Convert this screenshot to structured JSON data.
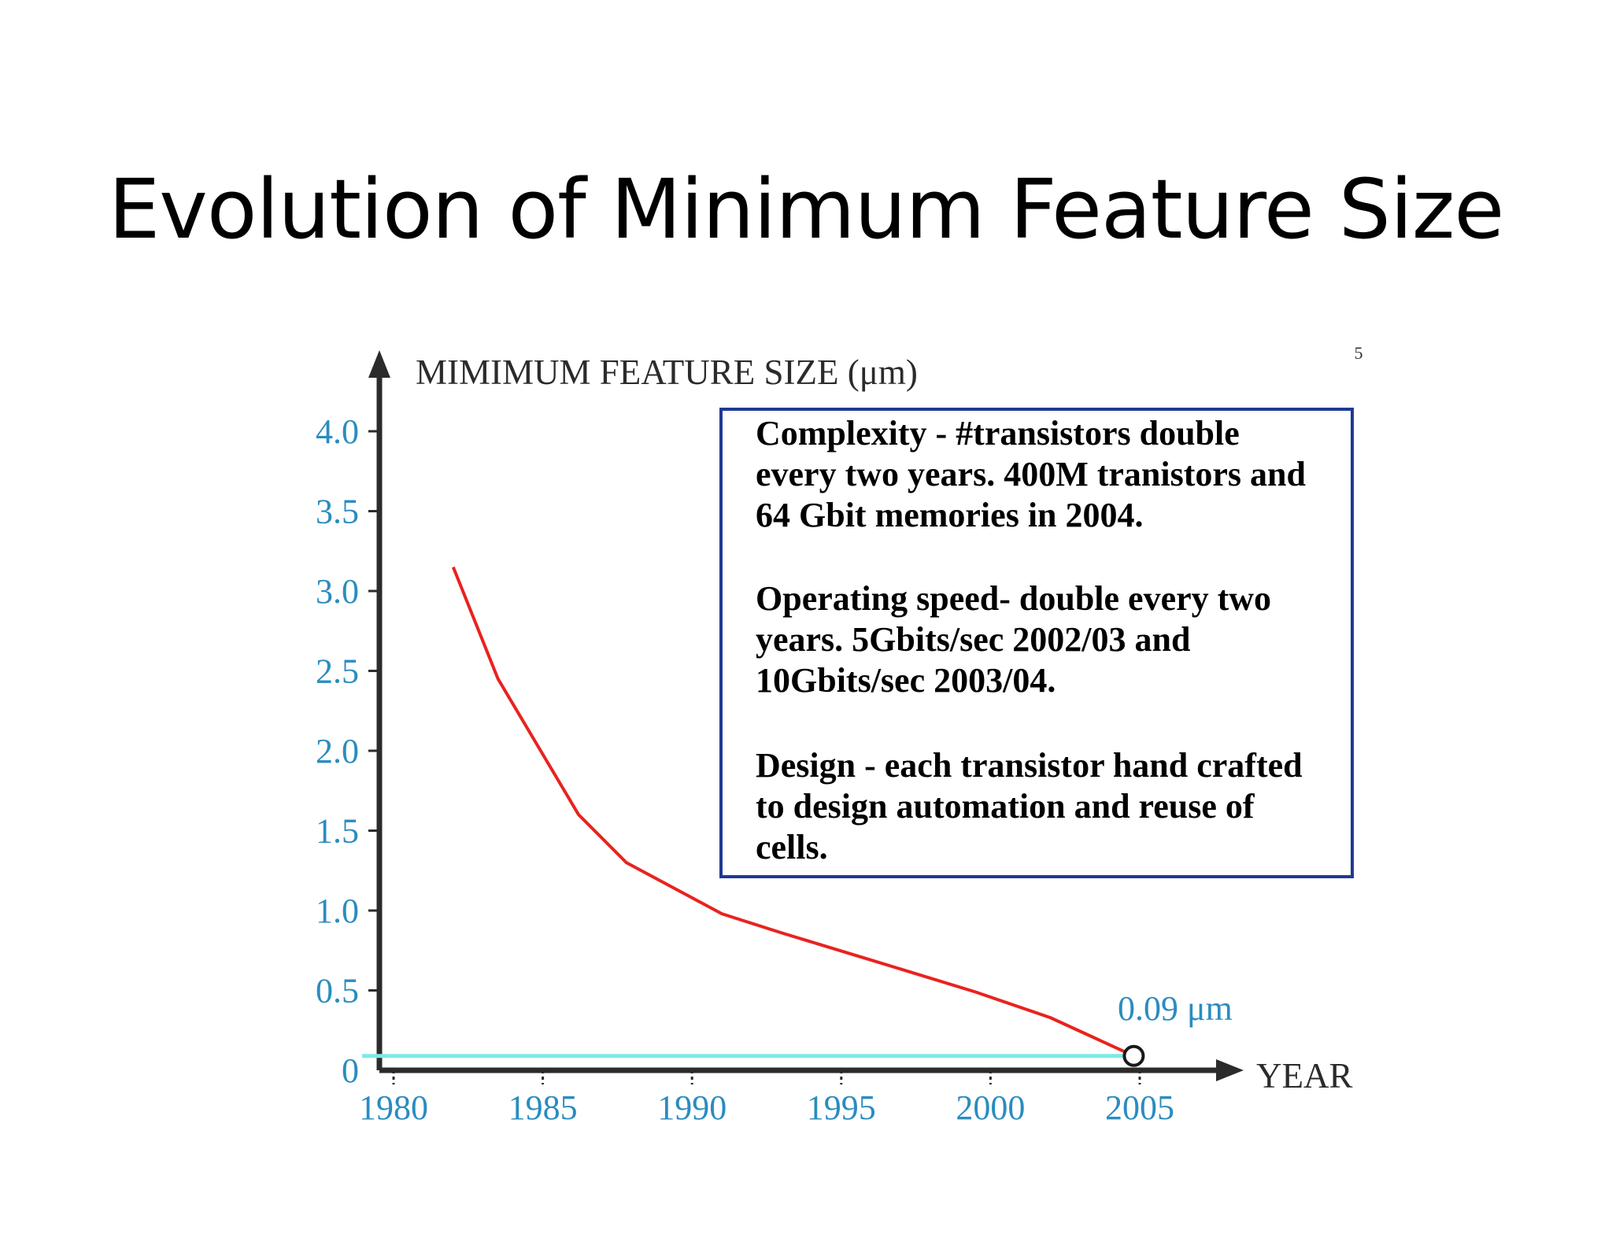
{
  "slide": {
    "title": "Evolution of Minimum Feature Size",
    "page_number": "5"
  },
  "chart_data": {
    "type": "line",
    "ylabel": "MIMIMUM FEATURE SIZE (μm)",
    "xlabel": "YEAR",
    "x_ticks": [
      "1980",
      "1985",
      "1990",
      "1995",
      "2000",
      "2005"
    ],
    "x_tick_values": [
      1980,
      1985,
      1990,
      1995,
      2000,
      2005
    ],
    "y_ticks": [
      "0",
      "0.5",
      "1.0",
      "1.5",
      "2.0",
      "2.5",
      "3.0",
      "3.5",
      "4.0"
    ],
    "y_tick_values": [
      0,
      0.5,
      1.0,
      1.5,
      2.0,
      2.5,
      3.0,
      3.5,
      4.0
    ],
    "xlim": [
      1980,
      2005
    ],
    "ylim": [
      0,
      4.0
    ],
    "series": [
      {
        "color": "#e8231f",
        "x": [
          1982,
          1983.5,
          1986.2,
          1987.8,
          1991,
          1993,
          1996,
          1999.5,
          2002,
          2004.8
        ],
        "y": [
          3.15,
          2.45,
          1.6,
          1.3,
          0.98,
          0.86,
          0.69,
          0.49,
          0.33,
          0.09
        ]
      }
    ],
    "reference_line": {
      "value": 0.09,
      "color": "#7fe8e8"
    },
    "marker": {
      "x": 2004.8,
      "y": 0.09
    },
    "annotation": "0.09 μm"
  },
  "notes_box": {
    "border_color": "#1f3a93",
    "paragraphs": [
      [
        "Complexity - #transistors double",
        "every two years.  400M tranistors and",
        "64 Gbit memories in 2004."
      ],
      [
        "Operating speed- double every two",
        "years. 5Gbits/sec 2002/03 and",
        "10Gbits/sec 2003/04."
      ],
      [
        "Design - each transistor hand crafted",
        "to design automation and reuse of",
        "cells."
      ]
    ]
  },
  "colors": {
    "axis": "#2b2b2b",
    "tick_label": "#2a8cc0",
    "line": "#e8231f"
  }
}
